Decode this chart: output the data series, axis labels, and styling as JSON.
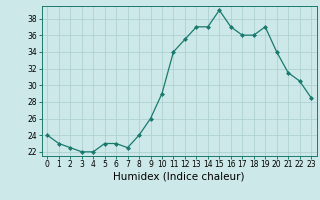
{
  "x": [
    0,
    1,
    2,
    3,
    4,
    5,
    6,
    7,
    8,
    9,
    10,
    11,
    12,
    13,
    14,
    15,
    16,
    17,
    18,
    19,
    20,
    21,
    22,
    23
  ],
  "y": [
    24,
    23,
    22.5,
    22,
    22,
    23,
    23,
    22.5,
    24,
    26,
    29,
    34,
    35.5,
    37,
    37,
    39,
    37,
    36,
    36,
    37,
    34,
    31.5,
    30.5,
    28.5
  ],
  "ylim": [
    21.5,
    39.5
  ],
  "yticks": [
    22,
    24,
    26,
    28,
    30,
    32,
    34,
    36,
    38
  ],
  "xlim": [
    -0.5,
    23.5
  ],
  "xticks": [
    0,
    1,
    2,
    3,
    4,
    5,
    6,
    7,
    8,
    9,
    10,
    11,
    12,
    13,
    14,
    15,
    16,
    17,
    18,
    19,
    20,
    21,
    22,
    23
  ],
  "xlabel": "Humidex (Indice chaleur)",
  "line_color": "#1a7a6e",
  "marker": "D",
  "marker_size": 2.0,
  "bg_color": "#cce8e8",
  "grid_color": "#aacece",
  "tick_fontsize": 5.5,
  "xlabel_fontsize": 7.5
}
